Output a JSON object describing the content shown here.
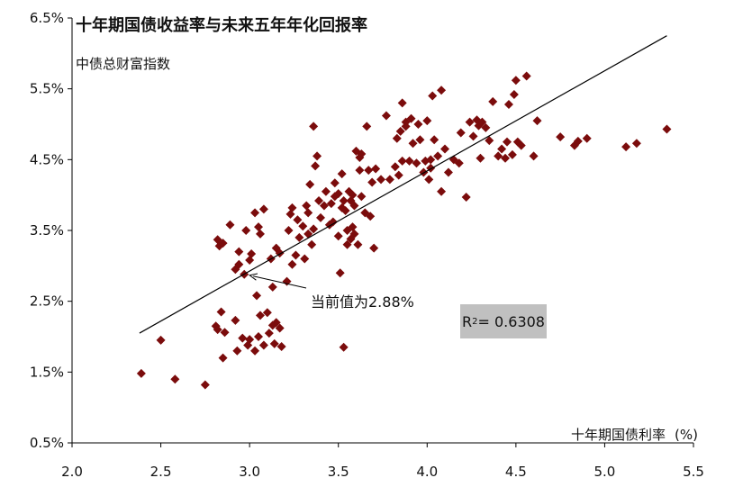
{
  "chart_data": {
    "type": "scatter",
    "title": "十年期国债收益率与未来五年年化回报率",
    "subtitle": "中债总财富指数",
    "xlabel": "十年期国债利率",
    "xunit": "(%)",
    "xlim": [
      2.0,
      5.5
    ],
    "ylim": [
      0.5,
      6.5
    ],
    "xticks": [
      "2.0",
      "2.5",
      "3.0",
      "3.5",
      "4.0",
      "4.5",
      "5.0",
      "5.5"
    ],
    "yticks": [
      "0.5%",
      "1.5%",
      "2.5%",
      "3.5%",
      "4.5%",
      "5.5%",
      "6.5%"
    ],
    "point_color": "#7b0c0c",
    "line_color": "#000000",
    "trendline": {
      "x": [
        2.38,
        5.35
      ],
      "y": [
        2.05,
        6.25
      ]
    },
    "r2_label": "R",
    "r2_sup": "2",
    "r2_value": " = 0.6308",
    "annotation": {
      "text": "当前值为2.88%",
      "x": 2.99,
      "y": 2.88
    },
    "points": [
      [
        2.39,
        1.48
      ],
      [
        2.5,
        1.95
      ],
      [
        2.58,
        1.4
      ],
      [
        2.75,
        1.32
      ],
      [
        2.81,
        2.15
      ],
      [
        2.82,
        2.1
      ],
      [
        2.84,
        2.35
      ],
      [
        2.86,
        2.06
      ],
      [
        2.85,
        1.7
      ],
      [
        2.92,
        2.23
      ],
      [
        2.93,
        1.8
      ],
      [
        2.96,
        1.98
      ],
      [
        2.99,
        1.88
      ],
      [
        3.0,
        1.96
      ],
      [
        3.03,
        1.8
      ],
      [
        3.05,
        2.0
      ],
      [
        3.06,
        2.3
      ],
      [
        3.08,
        1.88
      ],
      [
        3.1,
        2.34
      ],
      [
        3.11,
        2.05
      ],
      [
        3.13,
        2.16
      ],
      [
        3.14,
        1.9
      ],
      [
        3.15,
        2.2
      ],
      [
        3.17,
        2.12
      ],
      [
        3.18,
        1.86
      ],
      [
        3.04,
        2.58
      ],
      [
        3.13,
        2.7
      ],
      [
        3.21,
        2.78
      ],
      [
        3.53,
        1.85
      ],
      [
        2.82,
        3.37
      ],
      [
        2.83,
        3.28
      ],
      [
        2.85,
        3.32
      ],
      [
        2.89,
        3.58
      ],
      [
        2.92,
        2.95
      ],
      [
        2.94,
        3.02
      ],
      [
        2.94,
        3.2
      ],
      [
        2.97,
        2.88
      ],
      [
        2.98,
        3.5
      ],
      [
        3.0,
        3.08
      ],
      [
        3.01,
        3.17
      ],
      [
        3.03,
        3.75
      ],
      [
        3.05,
        3.55
      ],
      [
        3.06,
        3.45
      ],
      [
        3.08,
        3.8
      ],
      [
        3.12,
        3.1
      ],
      [
        3.15,
        3.25
      ],
      [
        3.17,
        3.18
      ],
      [
        3.22,
        3.5
      ],
      [
        3.23,
        3.73
      ],
      [
        3.24,
        3.82
      ],
      [
        3.24,
        3.02
      ],
      [
        3.26,
        3.15
      ],
      [
        3.27,
        3.65
      ],
      [
        3.28,
        3.4
      ],
      [
        3.3,
        3.56
      ],
      [
        3.31,
        3.1
      ],
      [
        3.32,
        3.85
      ],
      [
        3.33,
        3.45
      ],
      [
        3.33,
        3.75
      ],
      [
        3.34,
        4.15
      ],
      [
        3.35,
        3.3
      ],
      [
        3.36,
        3.52
      ],
      [
        3.36,
        4.97
      ],
      [
        3.37,
        4.41
      ],
      [
        3.38,
        4.55
      ],
      [
        3.39,
        3.92
      ],
      [
        3.4,
        3.68
      ],
      [
        3.42,
        3.85
      ],
      [
        3.43,
        4.05
      ],
      [
        3.45,
        3.58
      ],
      [
        3.46,
        3.88
      ],
      [
        3.47,
        3.62
      ],
      [
        3.48,
        4.17
      ],
      [
        3.48,
        3.98
      ],
      [
        3.5,
        4.02
      ],
      [
        3.5,
        3.42
      ],
      [
        3.51,
        2.9
      ],
      [
        3.52,
        3.82
      ],
      [
        3.52,
        4.3
      ],
      [
        3.53,
        3.92
      ],
      [
        3.54,
        3.78
      ],
      [
        3.55,
        3.5
      ],
      [
        3.55,
        3.3
      ],
      [
        3.56,
        4.05
      ],
      [
        3.57,
        3.38
      ],
      [
        3.57,
        3.92
      ],
      [
        3.58,
        4.0
      ],
      [
        3.58,
        3.55
      ],
      [
        3.59,
        3.45
      ],
      [
        3.59,
        3.85
      ],
      [
        3.6,
        4.62
      ],
      [
        3.61,
        3.3
      ],
      [
        3.62,
        4.35
      ],
      [
        3.62,
        4.53
      ],
      [
        3.63,
        4.58
      ],
      [
        3.63,
        3.98
      ],
      [
        3.65,
        3.75
      ],
      [
        3.66,
        4.97
      ],
      [
        3.67,
        4.35
      ],
      [
        3.68,
        3.7
      ],
      [
        3.69,
        4.18
      ],
      [
        3.7,
        3.25
      ],
      [
        3.71,
        4.37
      ],
      [
        3.74,
        4.22
      ],
      [
        3.77,
        5.12
      ],
      [
        3.79,
        4.22
      ],
      [
        3.82,
        4.4
      ],
      [
        3.83,
        4.8
      ],
      [
        3.84,
        4.28
      ],
      [
        3.85,
        4.9
      ],
      [
        3.86,
        4.48
      ],
      [
        3.86,
        5.3
      ],
      [
        3.88,
        4.97
      ],
      [
        3.88,
        5.03
      ],
      [
        3.9,
        4.48
      ],
      [
        3.91,
        5.08
      ],
      [
        3.92,
        4.73
      ],
      [
        3.94,
        4.45
      ],
      [
        3.95,
        5.0
      ],
      [
        3.96,
        4.78
      ],
      [
        3.98,
        4.32
      ],
      [
        3.99,
        4.48
      ],
      [
        4.0,
        5.05
      ],
      [
        4.01,
        4.22
      ],
      [
        4.02,
        4.5
      ],
      [
        4.02,
        4.38
      ],
      [
        4.03,
        5.4
      ],
      [
        4.04,
        4.78
      ],
      [
        4.06,
        4.55
      ],
      [
        4.08,
        5.48
      ],
      [
        4.08,
        4.05
      ],
      [
        4.1,
        4.65
      ],
      [
        4.12,
        4.32
      ],
      [
        4.15,
        4.5
      ],
      [
        4.18,
        4.45
      ],
      [
        4.19,
        4.88
      ],
      [
        4.22,
        3.97
      ],
      [
        4.24,
        5.03
      ],
      [
        4.26,
        4.83
      ],
      [
        4.28,
        5.06
      ],
      [
        4.29,
        4.98
      ],
      [
        4.3,
        4.52
      ],
      [
        4.31,
        5.03
      ],
      [
        4.33,
        4.95
      ],
      [
        4.35,
        4.77
      ],
      [
        4.37,
        5.32
      ],
      [
        4.4,
        4.55
      ],
      [
        4.42,
        4.65
      ],
      [
        4.44,
        4.52
      ],
      [
        4.45,
        4.75
      ],
      [
        4.46,
        5.28
      ],
      [
        4.48,
        4.57
      ],
      [
        4.49,
        5.42
      ],
      [
        4.5,
        5.62
      ],
      [
        4.51,
        4.75
      ],
      [
        4.53,
        4.7
      ],
      [
        4.56,
        5.68
      ],
      [
        4.6,
        4.55
      ],
      [
        4.62,
        5.05
      ],
      [
        4.75,
        4.82
      ],
      [
        4.83,
        4.7
      ],
      [
        4.85,
        4.76
      ],
      [
        4.9,
        4.8
      ],
      [
        5.12,
        4.68
      ],
      [
        5.18,
        4.73
      ],
      [
        5.35,
        4.93
      ]
    ]
  }
}
